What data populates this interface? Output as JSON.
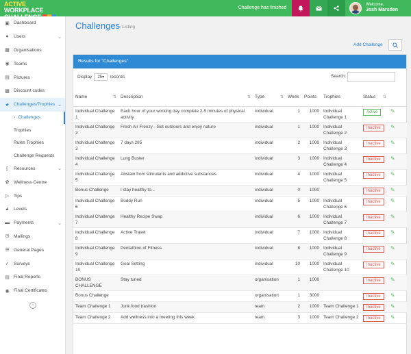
{
  "brand": {
    "line1_accent": "ACTIVE",
    "line1_rest": " WORKPLACE",
    "line2": "CHALLENGE"
  },
  "topbar": {
    "notice": "Challenge has finished",
    "welcome": "Welcome,",
    "user_name": "Josh Marsden"
  },
  "sidebar": {
    "items": [
      {
        "label": "Dashboard",
        "icon": "dashboard-icon"
      },
      {
        "label": "Users",
        "icon": "users-icon"
      },
      {
        "label": "Organisations",
        "icon": "organisations-icon"
      },
      {
        "label": "Teams",
        "icon": "teams-icon"
      },
      {
        "label": "Pictures",
        "icon": "pictures-icon"
      },
      {
        "label": "Discount codes",
        "icon": "cart-icon"
      },
      {
        "label": "Challenges/Trophies",
        "icon": "trophy-icon"
      }
    ],
    "subitems": [
      "Challenges",
      "Trophies",
      "Rules Trophies",
      "Challenge Requests"
    ],
    "items2": [
      {
        "label": "Resources",
        "icon": "resources-icon"
      },
      {
        "label": "Wellness Centre",
        "icon": "wellness-icon"
      },
      {
        "label": "Tips",
        "icon": "tips-icon"
      },
      {
        "label": "Levels",
        "icon": "levels-icon"
      },
      {
        "label": "Payments",
        "icon": "payments-icon"
      },
      {
        "label": "Mailings",
        "icon": "mail-icon"
      },
      {
        "label": "General Pages",
        "icon": "pages-icon"
      },
      {
        "label": "Surveys",
        "icon": "surveys-icon"
      },
      {
        "label": "Final Reports",
        "icon": "reports-icon"
      },
      {
        "label": "Final Certificates",
        "icon": "certificates-icon"
      }
    ]
  },
  "page": {
    "title": "Challenges",
    "breadcrumb": "Listing",
    "add_label": "Add Challenge"
  },
  "panel": {
    "heading": "Results for \"Challenges\"",
    "display_label": "Display",
    "display_value": "25",
    "records_label": "records",
    "search_label": "Search:"
  },
  "table": {
    "columns": [
      "Name",
      "Description",
      "Type",
      "Week",
      "Points",
      "Trophies",
      "Status"
    ],
    "rows": [
      {
        "name": "Individual Challenge 1",
        "description": "Each hour of your working day complete 2-5 minutes of physical activity",
        "type": "individual",
        "week": "1",
        "points": "1000",
        "trophies": "Individual Challenge 1",
        "status": "Active"
      },
      {
        "name": "Individual Challenge 2",
        "description": "Fresh Air Frenzy - Get outdoors and enjoy nature",
        "type": "individual",
        "week": "1",
        "points": "1000",
        "trophies": "Individual Challenge 2",
        "status": "Inactive"
      },
      {
        "name": "Individual Challenge 3",
        "description": "7 days 285",
        "type": "individual",
        "week": "2",
        "points": "1000",
        "trophies": "Individual Challenge 3",
        "status": "Inactive"
      },
      {
        "name": "Individual Challenge 4",
        "description": "Lung Buster",
        "type": "individual",
        "week": "3",
        "points": "1000",
        "trophies": "Individual Challenge 4",
        "status": "Inactive"
      },
      {
        "name": "Individual Challenge 5",
        "description": "Abstain from stimulants and addictive substances",
        "type": "individual",
        "week": "4",
        "points": "1000",
        "trophies": "Individual Challenge 5",
        "status": "Inactive"
      },
      {
        "name": "Bonus Challenge",
        "description": "I stay healthy to...",
        "type": "individual",
        "week": "0",
        "points": "1000",
        "trophies": "",
        "status": "Inactive"
      },
      {
        "name": "Individual Challenge 6",
        "description": "Buddy Run",
        "type": "individual",
        "week": "5",
        "points": "1000",
        "trophies": "Individual Challenge 6",
        "status": "Inactive"
      },
      {
        "name": "Individual Challenge 7",
        "description": "Healthy Recipe Swap",
        "type": "individual",
        "week": "6",
        "points": "1000",
        "trophies": "Individual Challenge 7",
        "status": "Inactive"
      },
      {
        "name": "Individual Challenge 8",
        "description": "Active Travel",
        "type": "individual",
        "week": "7",
        "points": "1000",
        "trophies": "Individual Challenge 8",
        "status": "Inactive"
      },
      {
        "name": "Individual Challenge 9",
        "description": "Pentathlon of Fitness",
        "type": "individual",
        "week": "8",
        "points": "1000",
        "trophies": "Individual Challenge 9",
        "status": "Inactive"
      },
      {
        "name": "Individual Challenge 10",
        "description": "Goal Setting",
        "type": "individual",
        "week": "10",
        "points": "1000",
        "trophies": "Individual Challenge 10",
        "status": "Inactive"
      },
      {
        "name": "BONUS CHALLENGE",
        "description": "Stay tuned",
        "type": "organisation",
        "week": "1",
        "points": "1000",
        "trophies": "",
        "status": "Inactive"
      },
      {
        "name": "Bonus Challenge",
        "description": "",
        "type": "organisation",
        "week": "1",
        "points": "3000",
        "trophies": "",
        "status": "Inactive"
      },
      {
        "name": "Team Challenge 1",
        "description": "Junk food trashion",
        "type": "team",
        "week": "2",
        "points": "1000",
        "trophies": "Team Challenge 1",
        "status": "Inactive"
      },
      {
        "name": "Team Challenge 2",
        "description": "Add wellness into a meeting this week.",
        "type": "team",
        "week": "3",
        "points": "1000",
        "trophies": "Team Challenge 2",
        "status": "Inactive"
      }
    ]
  },
  "colors": {
    "green": "#3fb95b",
    "blue": "#2f8ad6",
    "link": "#2a7fd0",
    "inactive": "#d9534f",
    "active": "#5cb85c"
  }
}
